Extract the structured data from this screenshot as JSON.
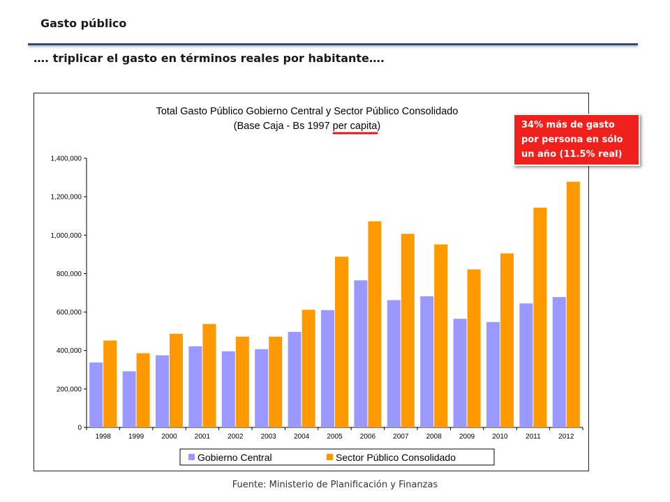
{
  "slide": {
    "title": "Gasto público",
    "subtitle": "…. triplicar el gasto en términos reales por habitante….",
    "callout": "34% más de gasto por persona en sólo un año (11.5% real)",
    "source": "Fuente: Ministerio de Planificación y Finanzas"
  },
  "chart_data": {
    "type": "bar",
    "title": "Total Gasto Público Gobierno Central y Sector Público Consolidado",
    "subtitle_prefix": "(Base Caja - Bs 1997 ",
    "subtitle_emph": "per capita",
    "subtitle_suffix": ")",
    "emphasis_color": "#e8121a",
    "categories": [
      "1998",
      "1999",
      "2000",
      "2001",
      "2002",
      "2003",
      "2004",
      "2005",
      "2006",
      "2007",
      "2008",
      "2009",
      "2010",
      "2011",
      "2012"
    ],
    "series": [
      {
        "name": "Gobierno Central",
        "color": "#9999ff",
        "values": [
          338000,
          292000,
          375000,
          422000,
          396000,
          407000,
          497000,
          610000,
          765000,
          662000,
          682000,
          565000,
          548000,
          645000,
          678000
        ]
      },
      {
        "name": "Sector Público Consolidado",
        "color": "#ff9900",
        "values": [
          452000,
          386000,
          487000,
          538000,
          472000,
          472000,
          612000,
          888000,
          1072000,
          1007000,
          952000,
          822000,
          905000,
          1143000,
          1278000
        ]
      }
    ],
    "ylim": [
      0,
      1400000
    ],
    "yticks": [
      0,
      200000,
      400000,
      600000,
      800000,
      1000000,
      1200000,
      1400000
    ],
    "ytick_labels": [
      "0",
      "200,000",
      "400,000",
      "600,000",
      "800,000",
      "1,000,000",
      "1,200,000",
      "1,400,000"
    ],
    "grid": false,
    "legend_position": "bottom"
  }
}
